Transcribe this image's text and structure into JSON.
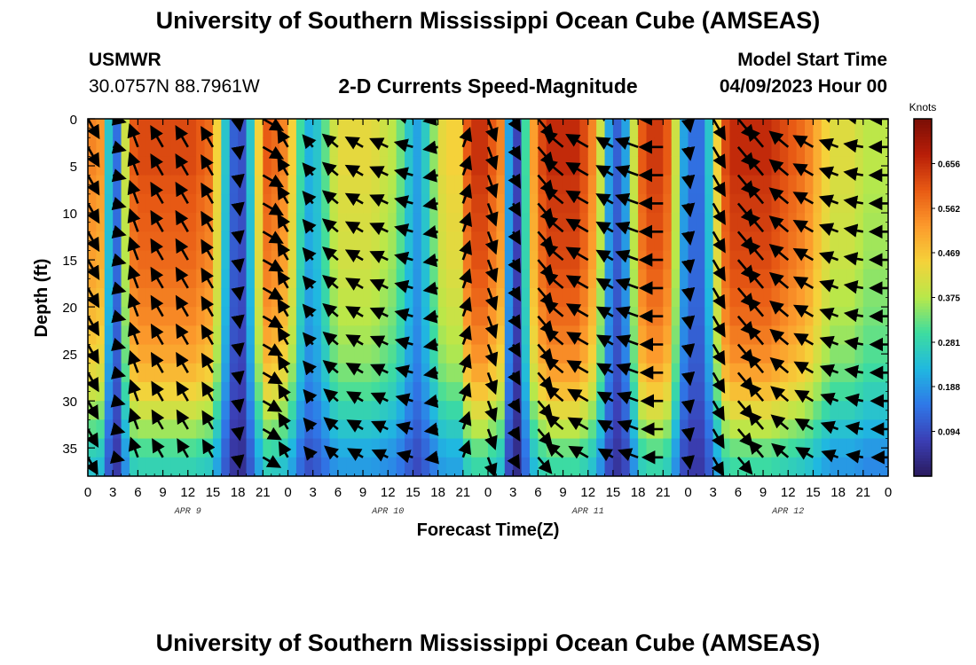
{
  "header": {
    "title": "University of Southern Mississippi Ocean Cube (AMSEAS)",
    "station_id": "USMWR",
    "location": "30.0757N  88.7961W",
    "chart_title": "2-D Currents Speed-Magnitude",
    "model_start_label": "Model Start Time",
    "model_start_value": "04/09/2023 Hour 00"
  },
  "footer": {
    "title": "University of Southern Mississippi Ocean Cube (AMSEAS)"
  },
  "chart_data": {
    "type": "heatmap",
    "title": "2-D Currents Speed-Magnitude",
    "xlabel": "Forecast Time(Z)",
    "ylabel": "Depth (ft)",
    "x_range_hours": [
      0,
      96
    ],
    "x_tick_hours": [
      0,
      3,
      6,
      9,
      12,
      15,
      18,
      21,
      24,
      27,
      30,
      33,
      36,
      39,
      42,
      45,
      48,
      51,
      54,
      57,
      60,
      63,
      66,
      69,
      72,
      75,
      78,
      81,
      84,
      87,
      90,
      93,
      96
    ],
    "x_tick_labels": [
      "0",
      "3",
      "6",
      "9",
      "12",
      "15",
      "18",
      "21",
      "0",
      "3",
      "6",
      "9",
      "12",
      "15",
      "18",
      "21",
      "0",
      "3",
      "6",
      "9",
      "12",
      "15",
      "18",
      "21",
      "0",
      "3",
      "6",
      "9",
      "12",
      "15",
      "18",
      "21",
      "0"
    ],
    "date_labels": [
      {
        "hour": 12,
        "label": "APR 9"
      },
      {
        "hour": 36,
        "label": "APR 10"
      },
      {
        "hour": 60,
        "label": "APR 11"
      },
      {
        "hour": 84,
        "label": "APR 12"
      }
    ],
    "y_range_ft": [
      0,
      38
    ],
    "y_ticks": [
      0,
      5,
      10,
      15,
      20,
      25,
      30,
      35
    ],
    "y_tick_labels": [
      "0",
      "5",
      "10",
      "15",
      "20",
      "25",
      "30",
      "35"
    ],
    "colorbar": {
      "units": "Knots",
      "range": [
        0.0,
        0.75
      ],
      "tick_values": [
        0.094,
        0.188,
        0.281,
        0.375,
        0.469,
        0.562,
        0.656
      ],
      "tick_labels": [
        "0.094",
        "0.188",
        "0.281",
        "0.375",
        "0.469",
        "0.562",
        "0.656"
      ],
      "colors": [
        "#2a1a5e",
        "#3b3fb5",
        "#2f78e8",
        "#20b8e0",
        "#3ddca0",
        "#b8e84a",
        "#f5d23a",
        "#fc9a2c",
        "#e85a14",
        "#b81e08",
        "#7a0e06"
      ]
    },
    "speed_grid": {
      "time_step_hours": 1,
      "depth_step_ft": 2,
      "time_profile_knots": [
        0.55,
        0.53,
        0.25,
        0.14,
        0.4,
        0.6,
        0.62,
        0.62,
        0.62,
        0.62,
        0.62,
        0.62,
        0.62,
        0.6,
        0.58,
        0.45,
        0.25,
        0.12,
        0.1,
        0.25,
        0.45,
        0.6,
        0.58,
        0.55,
        0.45,
        0.3,
        0.22,
        0.25,
        0.32,
        0.4,
        0.43,
        0.43,
        0.43,
        0.43,
        0.42,
        0.4,
        0.38,
        0.33,
        0.25,
        0.2,
        0.26,
        0.35,
        0.43,
        0.45,
        0.45,
        0.6,
        0.65,
        0.65,
        0.6,
        0.55,
        0.2,
        0.08,
        0.3,
        0.52,
        0.62,
        0.66,
        0.66,
        0.66,
        0.66,
        0.62,
        0.55,
        0.4,
        0.2,
        0.12,
        0.2,
        0.4,
        0.6,
        0.64,
        0.64,
        0.6,
        0.4,
        0.2,
        0.14,
        0.14,
        0.25,
        0.45,
        0.62,
        0.66,
        0.66,
        0.66,
        0.66,
        0.66,
        0.64,
        0.62,
        0.6,
        0.58,
        0.55,
        0.5,
        0.45,
        0.42,
        0.42,
        0.42,
        0.4,
        0.38,
        0.38,
        0.38,
        0.38
      ],
      "depth_factor": [
        1.0,
        1.0,
        1.0,
        0.98,
        0.97,
        0.96,
        0.95,
        0.94,
        0.92,
        0.9,
        0.88,
        0.85,
        0.82,
        0.78,
        0.72,
        0.65,
        0.58,
        0.5,
        0.45,
        0.42
      ]
    },
    "vector_grid": {
      "time_step_hours": 3,
      "depth_step_ft": 3,
      "time_hours": [
        0,
        3,
        6,
        9,
        12,
        15,
        18,
        21,
        24,
        27,
        30,
        33,
        36,
        39,
        42,
        45,
        48,
        51,
        54,
        57,
        60,
        63,
        66,
        69,
        72,
        75,
        78,
        81,
        84,
        87,
        90,
        93,
        96
      ],
      "direction_deg": [
        150,
        105,
        340,
        330,
        330,
        330,
        170,
        120,
        330,
        320,
        310,
        300,
        295,
        285,
        260,
        20,
        160,
        150,
        140,
        310,
        300,
        300,
        290,
        270,
        170,
        150,
        140,
        320,
        310,
        300,
        290,
        280,
        270
      ],
      "speed_knots": [
        0.55,
        0.14,
        0.62,
        0.62,
        0.62,
        0.58,
        0.1,
        0.58,
        0.45,
        0.25,
        0.43,
        0.43,
        0.42,
        0.38,
        0.2,
        0.45,
        0.6,
        0.2,
        0.62,
        0.66,
        0.66,
        0.4,
        0.6,
        0.6,
        0.14,
        0.62,
        0.66,
        0.66,
        0.62,
        0.55,
        0.42,
        0.4,
        0.38
      ]
    }
  }
}
